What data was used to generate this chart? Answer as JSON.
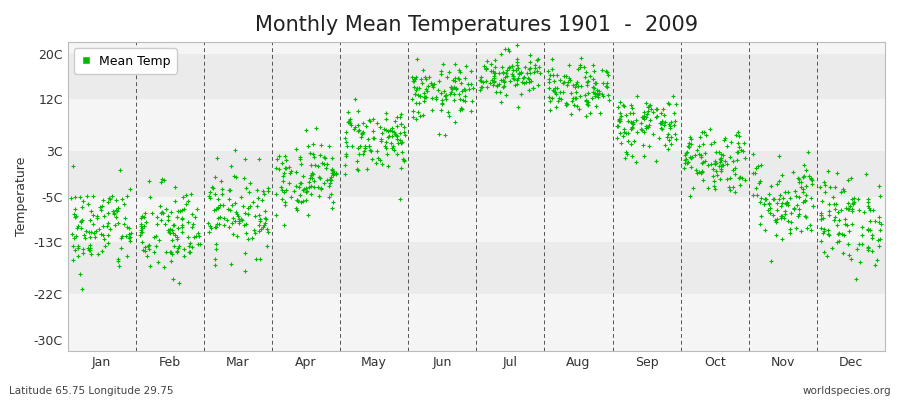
{
  "title": "Monthly Mean Temperatures 1901  -  2009",
  "ylabel": "Temperature",
  "yticks": [
    20,
    12,
    3,
    -5,
    -13,
    -22,
    -30
  ],
  "ytick_labels": [
    "20C",
    "12C",
    "3C",
    "-5C",
    "-13C",
    "-22C",
    "-30C"
  ],
  "ylim": [
    -32,
    22
  ],
  "months": [
    "Jan",
    "Feb",
    "Mar",
    "Apr",
    "May",
    "Jun",
    "Jul",
    "Aug",
    "Sep",
    "Oct",
    "Nov",
    "Dec"
  ],
  "dot_color": "#00bb00",
  "bg_color": "#ffffff",
  "plot_bg_color": "#f5f5f5",
  "band_colors": [
    "#ebebeb",
    "#f5f5f5"
  ],
  "dash_color": "#555555",
  "subtitle_left": "Latitude 65.75 Longitude 29.75",
  "subtitle_right": "worldspecies.org",
  "legend_label": "Mean Temp",
  "title_fontsize": 15,
  "label_fontsize": 9,
  "tick_fontsize": 9,
  "mean_temps": [
    -10.5,
    -11.2,
    -7.5,
    -1.5,
    5.0,
    13.0,
    16.5,
    13.5,
    7.5,
    1.5,
    -5.5,
    -9.0
  ],
  "std_temps": [
    4.0,
    4.2,
    3.8,
    3.2,
    3.0,
    2.5,
    2.0,
    2.2,
    2.8,
    3.0,
    3.8,
    4.0
  ],
  "n_years": 109,
  "seed": 42
}
